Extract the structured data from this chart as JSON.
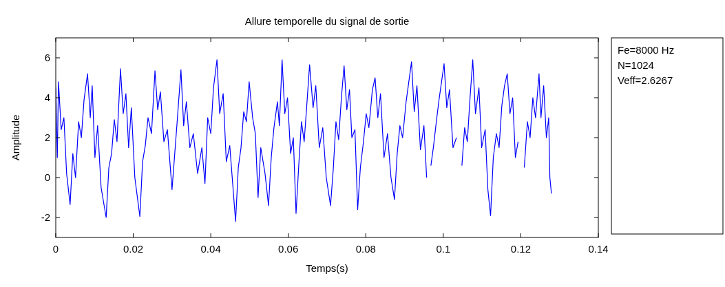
{
  "chart_data": {
    "type": "line",
    "title": "Allure temporelle du signal de sortie",
    "xlabel": "Temps(s)",
    "ylabel": "Amplitude",
    "annotations": [
      "Fe=8000 Hz",
      "N=1024",
      "Veff=2.6267"
    ],
    "xlim": [
      0,
      0.14
    ],
    "xticks": [
      0,
      0.02,
      0.04,
      0.06,
      0.08,
      0.1,
      0.12,
      0.14
    ],
    "ylim": [
      -3,
      7
    ],
    "yticks": [
      -2,
      0,
      2,
      4,
      6
    ],
    "grid": false,
    "x": [
      0,
      0.0004,
      0.0007,
      0.0014,
      0.0021,
      0.0028,
      0.0037,
      0.0044,
      0.0051,
      0.0059,
      0.0066,
      0.0073,
      0.0082,
      0.0089,
      0.0094,
      0.0101,
      0.0108,
      0.0117,
      0.013,
      0.0137,
      0.0144,
      0.0151,
      0.0158,
      0.0167,
      0.0174,
      0.0181,
      0.0188,
      0.0195,
      0.0204,
      0.0217,
      0.0224,
      0.0231,
      0.0238,
      0.0247,
      0.0256,
      0.0263,
      0.027,
      0.0279,
      0.0288,
      0.03,
      0.0307,
      0.0314,
      0.0323,
      0.033,
      0.0337,
      0.0346,
      0.0355,
      0.0366,
      0.0377,
      0.0385,
      0.0392,
      0.04,
      0.0407,
      0.0416,
      0.0423,
      0.0432,
      0.044,
      0.0449,
      0.0464,
      0.0471,
      0.0478,
      0.0485,
      0.0492,
      0.0499,
      0.0508,
      0.0515,
      0.0522,
      0.0529,
      0.054,
      0.0549,
      0.0556,
      0.0563,
      0.0572,
      0.0577,
      0.0584,
      0.0591,
      0.0598,
      0.0606,
      0.0613,
      0.062,
      0.0627,
      0.0634,
      0.0641,
      0.0648,
      0.0655,
      0.0664,
      0.0671,
      0.068,
      0.0689,
      0.0698,
      0.0709,
      0.0716,
      0.0723,
      0.073,
      0.0737,
      0.0744,
      0.0751,
      0.0758,
      0.0764,
      0.0772,
      0.0779,
      0.0786,
      0.0794,
      0.0801,
      0.0808,
      0.0817,
      0.0824,
      0.0831,
      0.0838,
      0.0847,
      0.0856,
      0.0865,
      0.0874,
      0.0881,
      0.0888,
      0.0895,
      0.0904,
      0.0918,
      0.0925,
      0.0932,
      0.0941,
      0.095,
      0.0957,
      0.0961,
      0.0968,
      0.0975,
      0.0982,
      0.0989,
      0.1002,
      0.1009,
      0.1016,
      0.1025,
      0.1034,
      0.1041,
      0.1048,
      0.1055,
      0.1062,
      0.1069,
      0.1076,
      0.1083,
      0.1092,
      0.1099,
      0.1108,
      0.1115,
      0.1122,
      0.1129,
      0.1137,
      0.1144,
      0.1151,
      0.1158,
      0.1165,
      0.1172,
      0.1179,
      0.1186,
      0.1193,
      0.1202,
      0.1209,
      0.1217,
      0.1224,
      0.1231,
      0.1238,
      0.1247,
      0.1252,
      0.1259,
      0.1266,
      0.1272,
      0.1275,
      0.1279
    ],
    "series": [
      {
        "color": "#0000ff",
        "values": [
          4.5,
          1.0,
          4.8,
          2.4,
          3.0,
          0.2,
          -1.35,
          1.2,
          0.0,
          2.8,
          2.0,
          3.9,
          5.2,
          3.0,
          4.6,
          1.0,
          2.6,
          -0.5,
          -2.0,
          0.5,
          1.2,
          2.9,
          1.8,
          5.45,
          3.2,
          4.2,
          1.5,
          3.5,
          0.0,
          -1.95,
          0.8,
          1.6,
          3.0,
          2.2,
          5.35,
          3.4,
          4.3,
          1.8,
          2.4,
          -0.6,
          1.2,
          3.0,
          5.4,
          2.6,
          3.8,
          1.5,
          2.2,
          0.2,
          1.5,
          -0.3,
          3.0,
          2.2,
          4.5,
          5.9,
          3.2,
          4.2,
          0.8,
          1.6,
          -2.2,
          0.5,
          1.5,
          3.3,
          2.8,
          4.8,
          3.0,
          2.2,
          -1.0,
          1.5,
          0.2,
          -1.4,
          1.0,
          2.5,
          3.8,
          2.6,
          5.9,
          3.2,
          4.0,
          1.2,
          2.0,
          -1.8,
          0.6,
          2.8,
          1.8,
          3.7,
          5.65,
          3.5,
          4.6,
          1.5,
          2.5,
          0.0,
          -1.4,
          0.4,
          2.8,
          1.9,
          4.0,
          5.6,
          3.4,
          4.4,
          2.0,
          2.4,
          -1.6,
          0.5,
          1.8,
          3.2,
          2.5,
          4.4,
          5.0,
          3.0,
          4.2,
          1.0,
          2.2,
          0.0,
          -1.1,
          1.2,
          2.6,
          2.0,
          3.8,
          5.8,
          3.3,
          4.6,
          1.4,
          2.6,
          0.0,
          null,
          0.6,
          1.6,
          2.8,
          3.9,
          5.7,
          3.5,
          4.4,
          1.5,
          2.0,
          null,
          0.6,
          2.5,
          1.8,
          4.0,
          5.9,
          3.2,
          4.5,
          1.5,
          2.4,
          -0.6,
          -1.9,
          1.0,
          2.2,
          1.5,
          3.6,
          4.6,
          5.2,
          3.2,
          4.0,
          1.0,
          1.8,
          null,
          0.5,
          2.8,
          2.0,
          4.0,
          3.0,
          5.2,
          3.0,
          4.6,
          2.0,
          3.0,
          0.0,
          -0.8
        ]
      }
    ]
  }
}
